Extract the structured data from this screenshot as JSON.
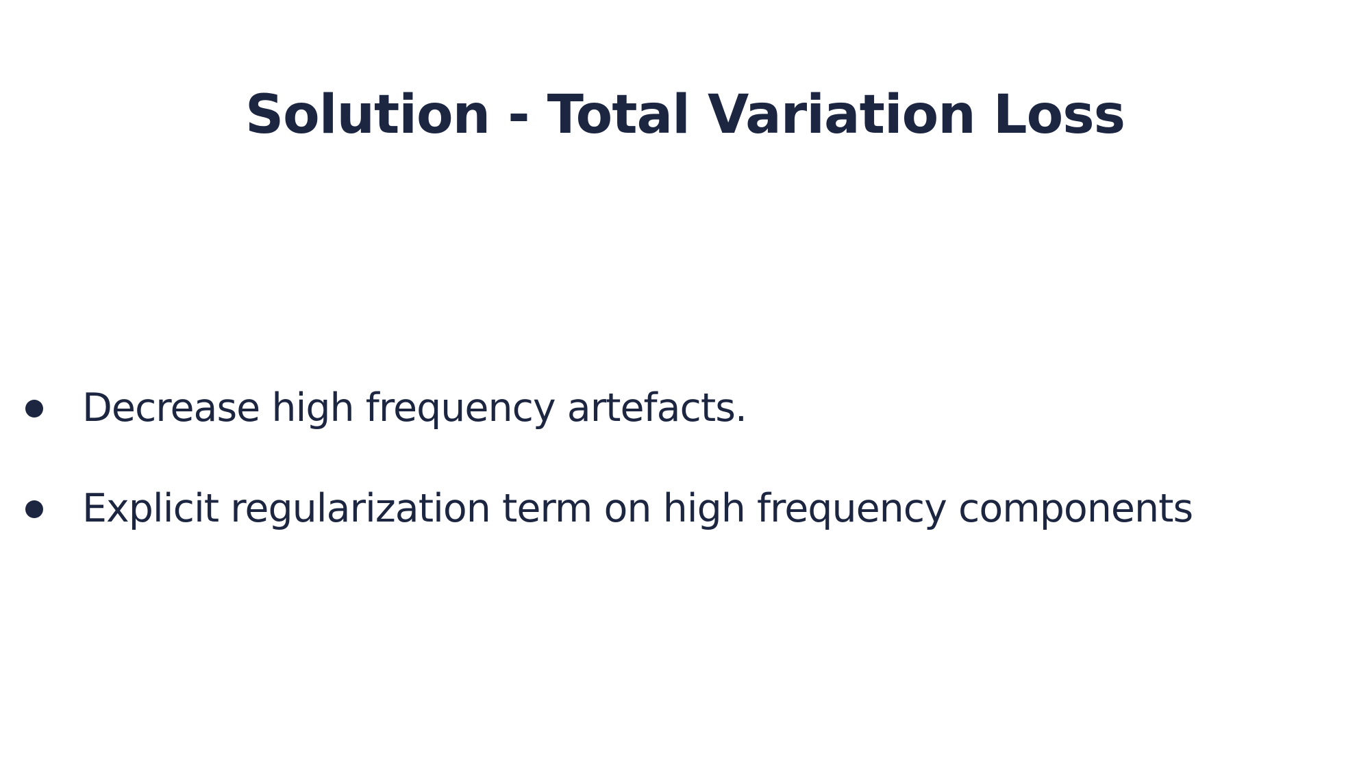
{
  "slide": {
    "title": "Solution - Total Variation Loss",
    "bullets": [
      {
        "text": "Decrease high frequency artefacts."
      },
      {
        "text": "Explicit regularization term on high frequency components"
      }
    ]
  },
  "colors": {
    "background": "#ffffff",
    "text": "#1c2641"
  }
}
